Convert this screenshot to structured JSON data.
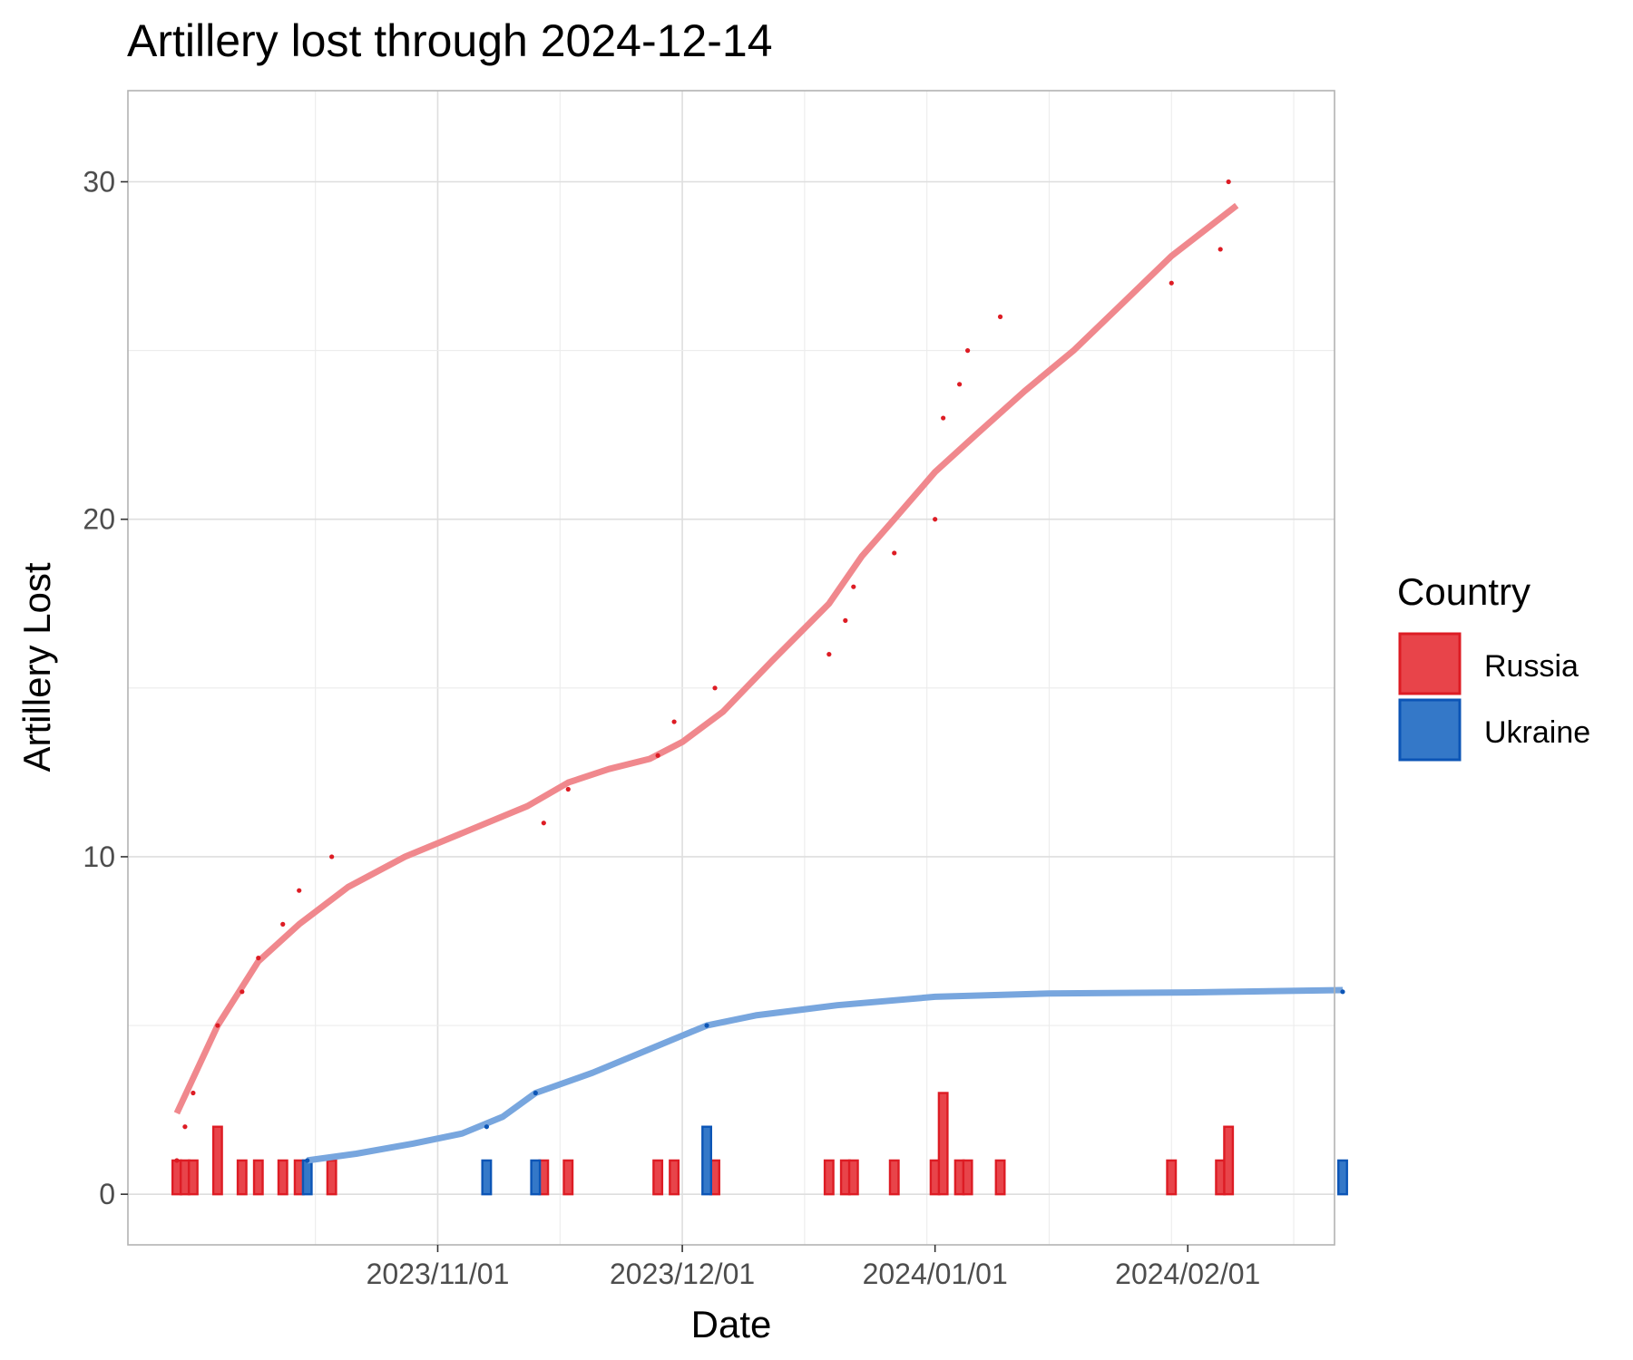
{
  "chart_data": {
    "type": "bar",
    "title": "Artillery lost through 2024-12-14",
    "xlabel": "Date",
    "ylabel": "Artillery Lost",
    "x_range": [
      "2023-09-24",
      "2024-02-19"
    ],
    "ylim": [
      -1.5,
      32.7
    ],
    "x_ticks": [
      "2023/11/01",
      "2023/12/01",
      "2024/01/01",
      "2024/02/01"
    ],
    "y_ticks": [
      "0",
      "10",
      "20",
      "30"
    ],
    "grid": true,
    "legend": {
      "title": "Country",
      "position": "right",
      "entries": [
        "Russia",
        "Ukraine"
      ]
    },
    "colors": {
      "Russia": "#e8444a",
      "Russia_border": "#dd1c24",
      "Ukraine": "#3478c8",
      "Ukraine_border": "#0c55b6",
      "Russia_smooth": "#f0888d",
      "Ukraine_smooth": "#78a6de"
    },
    "series": [
      {
        "name": "Russia",
        "daily": [
          {
            "date": "2023-09-30",
            "value": 1
          },
          {
            "date": "2023-10-01",
            "value": 1
          },
          {
            "date": "2023-10-02",
            "value": 1
          },
          {
            "date": "2023-10-05",
            "value": 2
          },
          {
            "date": "2023-10-08",
            "value": 1
          },
          {
            "date": "2023-10-10",
            "value": 1
          },
          {
            "date": "2023-10-13",
            "value": 1
          },
          {
            "date": "2023-10-15",
            "value": 1
          },
          {
            "date": "2023-10-19",
            "value": 1
          },
          {
            "date": "2023-11-14",
            "value": 1
          },
          {
            "date": "2023-11-17",
            "value": 1
          },
          {
            "date": "2023-11-28",
            "value": 1
          },
          {
            "date": "2023-11-30",
            "value": 1
          },
          {
            "date": "2023-12-05",
            "value": 1
          },
          {
            "date": "2023-12-19",
            "value": 1
          },
          {
            "date": "2023-12-21",
            "value": 1
          },
          {
            "date": "2023-12-22",
            "value": 1
          },
          {
            "date": "2023-12-27",
            "value": 1
          },
          {
            "date": "2024-01-01",
            "value": 1
          },
          {
            "date": "2024-01-02",
            "value": 3
          },
          {
            "date": "2024-01-04",
            "value": 1
          },
          {
            "date": "2024-01-05",
            "value": 1
          },
          {
            "date": "2024-01-09",
            "value": 1
          },
          {
            "date": "2024-01-30",
            "value": 1
          },
          {
            "date": "2024-02-05",
            "value": 1
          },
          {
            "date": "2024-02-06",
            "value": 2
          }
        ],
        "cumulative": [
          {
            "date": "2023-09-30",
            "value": 1
          },
          {
            "date": "2023-10-01",
            "value": 2
          },
          {
            "date": "2023-10-02",
            "value": 3
          },
          {
            "date": "2023-10-05",
            "value": 5
          },
          {
            "date": "2023-10-08",
            "value": 6
          },
          {
            "date": "2023-10-10",
            "value": 7
          },
          {
            "date": "2023-10-13",
            "value": 8
          },
          {
            "date": "2023-10-15",
            "value": 9
          },
          {
            "date": "2023-10-19",
            "value": 10
          },
          {
            "date": "2023-11-14",
            "value": 11
          },
          {
            "date": "2023-11-17",
            "value": 12
          },
          {
            "date": "2023-11-28",
            "value": 13
          },
          {
            "date": "2023-11-30",
            "value": 14
          },
          {
            "date": "2023-12-05",
            "value": 15
          },
          {
            "date": "2023-12-19",
            "value": 16
          },
          {
            "date": "2023-12-21",
            "value": 17
          },
          {
            "date": "2023-12-22",
            "value": 18
          },
          {
            "date": "2023-12-27",
            "value": 19
          },
          {
            "date": "2024-01-01",
            "value": 20
          },
          {
            "date": "2024-01-02",
            "value": 23
          },
          {
            "date": "2024-01-04",
            "value": 24
          },
          {
            "date": "2024-01-05",
            "value": 25
          },
          {
            "date": "2024-01-09",
            "value": 26
          },
          {
            "date": "2024-01-30",
            "value": 27
          },
          {
            "date": "2024-02-05",
            "value": 28
          },
          {
            "date": "2024-02-06",
            "value": 30
          }
        ],
        "smooth": [
          {
            "date": "2023-09-30",
            "value": 2.4
          },
          {
            "date": "2023-10-05",
            "value": 5.0
          },
          {
            "date": "2023-10-10",
            "value": 6.9
          },
          {
            "date": "2023-10-15",
            "value": 8.0
          },
          {
            "date": "2023-10-21",
            "value": 9.1
          },
          {
            "date": "2023-10-28",
            "value": 10.0
          },
          {
            "date": "2023-11-05",
            "value": 10.8
          },
          {
            "date": "2023-11-12",
            "value": 11.5
          },
          {
            "date": "2023-11-17",
            "value": 12.2
          },
          {
            "date": "2023-11-22",
            "value": 12.6
          },
          {
            "date": "2023-11-27",
            "value": 12.9
          },
          {
            "date": "2023-12-01",
            "value": 13.4
          },
          {
            "date": "2023-12-06",
            "value": 14.3
          },
          {
            "date": "2023-12-12",
            "value": 15.8
          },
          {
            "date": "2023-12-19",
            "value": 17.5
          },
          {
            "date": "2023-12-23",
            "value": 18.9
          },
          {
            "date": "2023-12-27",
            "value": 20.0
          },
          {
            "date": "2024-01-01",
            "value": 21.4
          },
          {
            "date": "2024-01-06",
            "value": 22.5
          },
          {
            "date": "2024-01-12",
            "value": 23.8
          },
          {
            "date": "2024-01-18",
            "value": 25.0
          },
          {
            "date": "2024-01-24",
            "value": 26.4
          },
          {
            "date": "2024-01-30",
            "value": 27.8
          },
          {
            "date": "2024-02-07",
            "value": 29.3
          }
        ]
      },
      {
        "name": "Ukraine",
        "daily": [
          {
            "date": "2023-10-16",
            "value": 1
          },
          {
            "date": "2023-11-07",
            "value": 1
          },
          {
            "date": "2023-11-13",
            "value": 1
          },
          {
            "date": "2023-12-04",
            "value": 2
          },
          {
            "date": "2024-02-20",
            "value": 1
          }
        ],
        "cumulative": [
          {
            "date": "2023-10-16",
            "value": 1
          },
          {
            "date": "2023-11-07",
            "value": 2
          },
          {
            "date": "2023-11-13",
            "value": 3
          },
          {
            "date": "2023-12-04",
            "value": 5
          },
          {
            "date": "2024-02-20",
            "value": 6
          }
        ],
        "smooth": [
          {
            "date": "2023-10-16",
            "value": 1.0
          },
          {
            "date": "2023-10-22",
            "value": 1.2
          },
          {
            "date": "2023-10-29",
            "value": 1.5
          },
          {
            "date": "2023-11-04",
            "value": 1.8
          },
          {
            "date": "2023-11-09",
            "value": 2.3
          },
          {
            "date": "2023-11-13",
            "value": 3.0
          },
          {
            "date": "2023-11-20",
            "value": 3.6
          },
          {
            "date": "2023-11-27",
            "value": 4.3
          },
          {
            "date": "2023-12-01",
            "value": 4.7
          },
          {
            "date": "2023-12-04",
            "value": 5.0
          },
          {
            "date": "2023-12-10",
            "value": 5.3
          },
          {
            "date": "2023-12-20",
            "value": 5.6
          },
          {
            "date": "2024-01-01",
            "value": 5.85
          },
          {
            "date": "2024-01-15",
            "value": 5.95
          },
          {
            "date": "2024-02-01",
            "value": 5.98
          },
          {
            "date": "2024-02-20",
            "value": 6.05
          }
        ]
      }
    ]
  }
}
